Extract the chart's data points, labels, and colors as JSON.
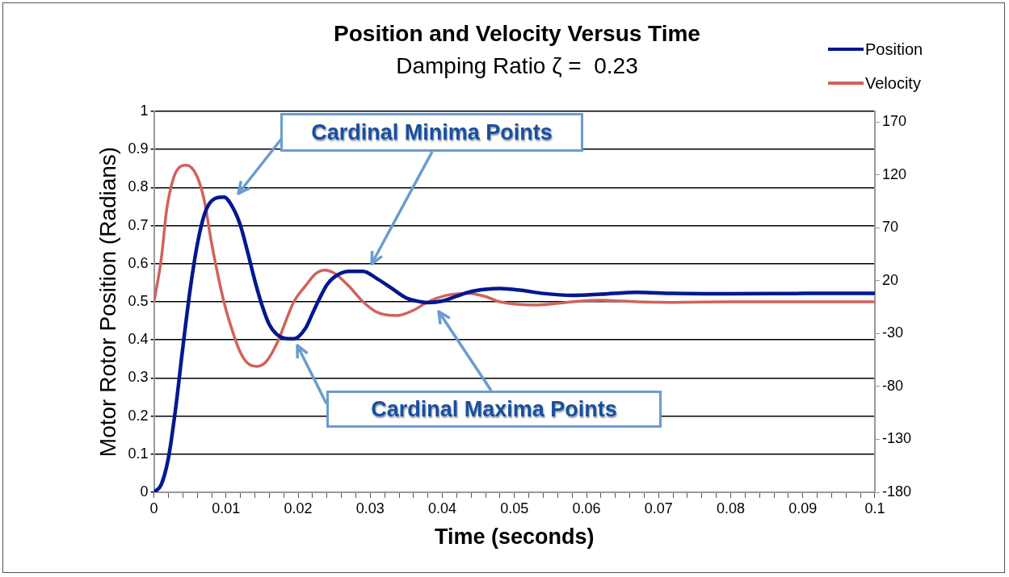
{
  "chart_data": {
    "type": "line",
    "title": "Position and Velocity Versus Time",
    "subtitle": "Damping Ratio ζ =  0.23",
    "xlabel": "Time (seconds)",
    "ylabel": "Motor Rotor Position (Radians)",
    "annotations": [
      "Cardinal Minima Points",
      "Cardinal Maxima Points"
    ],
    "xlim": [
      0,
      0.1
    ],
    "xticks": [
      0,
      {
        "value": 0.002,
        "label": null
      },
      {
        "value": 0.004,
        "label": null
      },
      {
        "value": 0.006,
        "label": null
      },
      {
        "value": 0.008,
        "label": null
      },
      0.01,
      {
        "value": 0.012,
        "label": null
      },
      {
        "value": 0.014,
        "label": null
      },
      {
        "value": 0.016,
        "label": null
      },
      {
        "value": 0.018,
        "label": null
      },
      0.02,
      {
        "value": 0.022,
        "label": null
      },
      {
        "value": 0.024,
        "label": null
      },
      {
        "value": 0.026,
        "label": null
      },
      {
        "value": 0.028,
        "label": null
      },
      0.03,
      {
        "value": 0.032,
        "label": null
      },
      {
        "value": 0.034,
        "label": null
      },
      {
        "value": 0.036,
        "label": null
      },
      {
        "value": 0.038,
        "label": null
      },
      0.04,
      {
        "value": 0.042,
        "label": null
      },
      {
        "value": 0.044,
        "label": null
      },
      {
        "value": 0.046,
        "label": null
      },
      {
        "value": 0.048,
        "label": null
      },
      0.05,
      {
        "value": 0.052,
        "label": null
      },
      {
        "value": 0.054,
        "label": null
      },
      {
        "value": 0.056,
        "label": null
      },
      {
        "value": 0.058,
        "label": null
      },
      0.06,
      {
        "value": 0.062,
        "label": null
      },
      {
        "value": 0.064,
        "label": null
      },
      {
        "value": 0.066,
        "label": null
      },
      {
        "value": 0.068,
        "label": null
      },
      0.07,
      {
        "value": 0.072,
        "label": null
      },
      {
        "value": 0.074,
        "label": null
      },
      {
        "value": 0.076,
        "label": null
      },
      {
        "value": 0.078,
        "label": null
      },
      0.08,
      {
        "value": 0.082,
        "label": null
      },
      {
        "value": 0.084,
        "label": null
      },
      {
        "value": 0.086,
        "label": null
      },
      {
        "value": 0.088,
        "label": null
      },
      0.09,
      {
        "value": 0.092,
        "label": null
      },
      {
        "value": 0.094,
        "label": null
      },
      {
        "value": 0.096,
        "label": null
      },
      {
        "value": 0.098,
        "label": null
      },
      0.1
    ],
    "ylim": [
      0,
      1
    ],
    "yticks": [
      0,
      0.1,
      0.2,
      0.3,
      0.4,
      0.5,
      0.6,
      0.7,
      0.8,
      0.9,
      1
    ],
    "y2lim": [
      -180,
      180
    ],
    "y2ticks": [
      -180,
      -130,
      -80,
      -30,
      20,
      70,
      120,
      170
    ],
    "grid": "y",
    "legend": "top right",
    "marker": "none",
    "line_style": "solid",
    "series": [
      {
        "name": "Position",
        "color": "#00188f",
        "x": [
          0,
          0.001,
          0.002,
          0.003,
          0.004,
          0.005,
          0.006,
          0.007,
          0.008,
          0.0097,
          0.011,
          0.012,
          0.013,
          0.014,
          0.015,
          0.016,
          0.017,
          0.018,
          0.0194,
          0.021,
          0.022,
          0.023,
          0.024,
          0.025,
          0.027,
          0.029,
          0.031,
          0.033,
          0.035,
          0.037,
          0.038,
          0.04,
          0.042,
          0.044,
          0.046,
          0.048,
          0.051,
          0.054,
          0.058,
          0.062,
          0.067,
          0.072,
          0.08,
          0.09,
          0.1
        ],
        "values": [
          0,
          0.02,
          0.09,
          0.22,
          0.38,
          0.53,
          0.65,
          0.73,
          0.765,
          0.775,
          0.745,
          0.7,
          0.63,
          0.555,
          0.49,
          0.44,
          0.415,
          0.405,
          0.403,
          0.43,
          0.47,
          0.51,
          0.545,
          0.565,
          0.58,
          0.58,
          0.56,
          0.535,
          0.51,
          0.5,
          0.498,
          0.502,
          0.515,
          0.527,
          0.533,
          0.535,
          0.53,
          0.522,
          0.517,
          0.52,
          0.525,
          0.522,
          0.521,
          0.522,
          0.522
        ]
      },
      {
        "name": "Velocity",
        "color": "#d0635a",
        "axis": "y2",
        "x": [
          0,
          0.001,
          0.0017,
          0.002,
          0.003,
          0.0045,
          0.006,
          0.007,
          0.008,
          0.0097,
          0.011,
          0.012,
          0.013,
          0.0142,
          0.0155,
          0.017,
          0.0194,
          0.021,
          0.0225,
          0.0237,
          0.025,
          0.027,
          0.029,
          0.031,
          0.0336,
          0.036,
          0.038,
          0.0405,
          0.0435,
          0.046,
          0.048,
          0.053,
          0.058,
          0.062,
          0.067,
          0.072,
          0.08,
          0.1
        ],
        "values": [
          0,
          40,
          84,
          97,
          122,
          129,
          118,
          95,
          55,
          0,
          -30,
          -48,
          -58,
          -61,
          -57,
          -40,
          0,
          15,
          27,
          30,
          27,
          15,
          0,
          -10,
          -13,
          -8,
          0,
          6,
          8,
          5,
          0,
          -3,
          0,
          1.5,
          0,
          -0.5,
          0,
          0
        ]
      }
    ]
  }
}
